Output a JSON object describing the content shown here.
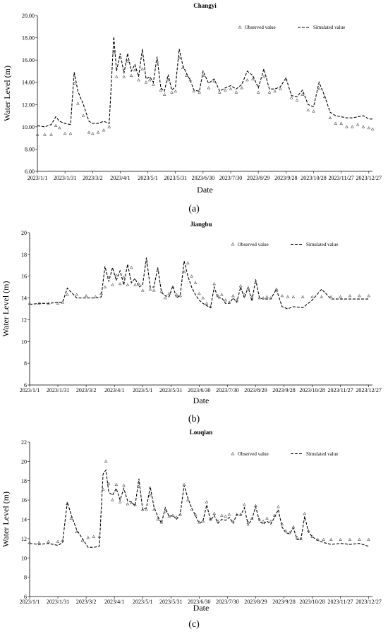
{
  "chart_data": [
    {
      "type": "line",
      "title": "Changyi",
      "xlabel": "Date",
      "ylabel": "Water Level (m)",
      "panel_label": "(a)",
      "ylim": [
        6,
        20
      ],
      "yticks": [
        "6.00",
        "8.00",
        "10.00",
        "12.00",
        "14.00",
        "16.00",
        "18.00",
        "20.00"
      ],
      "xticks": [
        "2023/1/1",
        "2023/1/31",
        "2023/3/2",
        "2023/4/1",
        "2023/5/1",
        "2023/5/31",
        "2023/6/30",
        "2023/7/30",
        "2023/8/29",
        "2023/9/28",
        "2023/10/28",
        "2023/11/27",
        "2023/12/27"
      ],
      "grid": false,
      "legend_position": "top-right",
      "series": [
        {
          "name": "Observed value",
          "marker": "triangle",
          "x": [
            0,
            8,
            15,
            20,
            24,
            30,
            36,
            40,
            44,
            50,
            56,
            60,
            66,
            72,
            78,
            83,
            86,
            90,
            94,
            98,
            102,
            106,
            110,
            114,
            118,
            122,
            126,
            130,
            134,
            138,
            142,
            146,
            150,
            154,
            158,
            162,
            166,
            170,
            176,
            180,
            186,
            192,
            198,
            204,
            210,
            216,
            222,
            228,
            234,
            240,
            246,
            252,
            258,
            264,
            270,
            276,
            282,
            288,
            294,
            300,
            306,
            312,
            318,
            324,
            330,
            336,
            342,
            348,
            354,
            360,
            364
          ],
          "y": [
            9.3,
            9.3,
            9.3,
            10.1,
            9.9,
            9.4,
            9.4,
            13.9,
            12.1,
            11.0,
            9.5,
            9.4,
            9.5,
            9.7,
            10.0,
            16.7,
            14.5,
            16.2,
            14.5,
            15.9,
            14.6,
            15.1,
            14.2,
            15.2,
            14.0,
            14.2,
            13.8,
            15.9,
            13.3,
            12.9,
            14.2,
            13.1,
            13.2,
            16.2,
            15.3,
            14.6,
            14.2,
            13.2,
            13.1,
            14.6,
            13.5,
            14.1,
            13.1,
            13.3,
            13.4,
            13.1,
            13.5,
            14.2,
            14.3,
            13.1,
            14.5,
            13.1,
            13.2,
            13.4,
            14.3,
            12.6,
            12.4,
            12.9,
            11.5,
            11.4,
            13.4,
            12.7,
            10.8,
            10.3,
            10.3,
            10.0,
            10.0,
            10.2,
            10.0,
            9.9,
            9.8
          ]
        },
        {
          "name": "Simulated value",
          "line": "dashed",
          "x": [
            0,
            8,
            15,
            20,
            24,
            30,
            36,
            40,
            44,
            50,
            56,
            60,
            66,
            72,
            78,
            83,
            86,
            90,
            94,
            98,
            102,
            106,
            110,
            114,
            118,
            122,
            126,
            130,
            134,
            138,
            142,
            146,
            150,
            154,
            158,
            162,
            166,
            170,
            176,
            180,
            186,
            192,
            198,
            204,
            210,
            216,
            222,
            228,
            234,
            240,
            246,
            252,
            258,
            264,
            270,
            276,
            282,
            288,
            294,
            300,
            306,
            312,
            318,
            324,
            330,
            336,
            342,
            348,
            354,
            360,
            364
          ],
          "y": [
            10.1,
            10.0,
            10.2,
            10.9,
            10.5,
            10.3,
            10.2,
            14.9,
            13.2,
            12.0,
            10.5,
            10.3,
            10.3,
            10.5,
            10.3,
            18.1,
            15.0,
            16.6,
            14.8,
            16.6,
            15.0,
            15.6,
            14.5,
            17.0,
            14.3,
            14.5,
            14.0,
            16.3,
            13.5,
            13.2,
            14.7,
            13.3,
            13.6,
            17.0,
            15.5,
            14.8,
            14.2,
            13.3,
            13.2,
            15.0,
            13.9,
            14.3,
            13.2,
            13.5,
            13.7,
            13.4,
            13.8,
            15.0,
            14.6,
            13.5,
            15.2,
            13.4,
            13.4,
            13.6,
            14.4,
            12.8,
            12.7,
            13.3,
            12.0,
            11.8,
            14.0,
            12.8,
            11.3,
            11.0,
            10.9,
            10.8,
            10.8,
            10.9,
            11.0,
            10.7,
            10.7
          ]
        }
      ]
    },
    {
      "type": "line",
      "title": "Jiangbu",
      "xlabel": "Date",
      "ylabel": "Water Level (m)",
      "panel_label": "(b)",
      "ylim": [
        6,
        20
      ],
      "yticks": [
        "6",
        "8",
        "10",
        "12",
        "14",
        "16",
        "18",
        "20"
      ],
      "xticks": [
        "2023/1/1",
        "2023/1/31",
        "2023/3/2",
        "2023/4/1",
        "2023/5/1",
        "2023/5/31",
        "2023/6/30",
        "2023/7/30",
        "2023/8/29",
        "2023/9/28",
        "2023/10/28",
        "2023/11/27",
        "2023/12/27"
      ],
      "grid": false,
      "legend_position": "top-right",
      "series": [
        {
          "name": "Observed value",
          "marker": "triangle",
          "x": [
            0,
            10,
            20,
            30,
            35,
            40,
            50,
            60,
            70,
            76,
            80,
            84,
            88,
            92,
            96,
            100,
            104,
            108,
            112,
            116,
            120,
            124,
            128,
            132,
            136,
            140,
            144,
            148,
            152,
            156,
            160,
            164,
            168,
            172,
            176,
            180,
            184,
            188,
            192,
            196,
            200,
            204,
            208,
            212,
            216,
            220,
            224,
            228,
            232,
            236,
            240,
            244,
            248,
            252,
            256,
            262,
            268,
            274,
            280,
            290,
            300,
            310,
            320,
            330,
            340,
            350,
            360
          ],
          "y": [
            13.5,
            13.5,
            13.5,
            13.5,
            13.6,
            14.3,
            14.3,
            14.2,
            14.1,
            14.4,
            15.0,
            15.9,
            15.2,
            16.1,
            15.3,
            15.9,
            15.2,
            16.8,
            15.2,
            15.3,
            14.7,
            17.2,
            14.8,
            14.7,
            16.5,
            14.6,
            14.0,
            14.4,
            15.0,
            14.3,
            14.2,
            16.4,
            17.2,
            16.0,
            15.4,
            14.4,
            14.0,
            13.5,
            13.2,
            15.3,
            14.2,
            14.3,
            13.8,
            13.6,
            14.2,
            13.8,
            15.1,
            14.3,
            14.9,
            14.1,
            15.4,
            14.0,
            14.0,
            14.1,
            14.0,
            14.8,
            14.2,
            14.1,
            14.1,
            14.1,
            14.1,
            14.1,
            14.1,
            14.1,
            14.2,
            14.2,
            14.2
          ]
        },
        {
          "name": "Simulated value",
          "line": "dashed",
          "x": [
            0,
            10,
            20,
            30,
            35,
            40,
            50,
            60,
            70,
            76,
            80,
            84,
            88,
            92,
            96,
            100,
            104,
            108,
            112,
            116,
            120,
            124,
            128,
            132,
            136,
            140,
            144,
            148,
            152,
            156,
            160,
            164,
            168,
            172,
            176,
            180,
            184,
            188,
            192,
            196,
            200,
            204,
            208,
            212,
            216,
            220,
            224,
            228,
            232,
            236,
            240,
            244,
            248,
            252,
            256,
            262,
            268,
            274,
            280,
            290,
            300,
            310,
            320,
            330,
            340,
            350,
            360
          ],
          "y": [
            13.4,
            13.5,
            13.5,
            13.6,
            13.6,
            14.9,
            14.0,
            14.0,
            14.0,
            14.1,
            16.9,
            15.5,
            16.8,
            15.6,
            16.5,
            15.2,
            17.1,
            15.4,
            15.8,
            15.0,
            15.2,
            17.7,
            15.0,
            15.0,
            16.8,
            14.5,
            14.2,
            14.1,
            15.1,
            14.0,
            14.3,
            17.4,
            16.0,
            15.0,
            14.3,
            13.8,
            13.5,
            13.3,
            13.1,
            15.0,
            14.0,
            14.0,
            13.5,
            13.5,
            14.0,
            13.6,
            15.0,
            14.0,
            15.0,
            13.7,
            15.7,
            14.0,
            13.9,
            13.9,
            13.9,
            14.8,
            13.2,
            13.0,
            13.2,
            13.1,
            13.8,
            14.8,
            13.9,
            13.9,
            13.9,
            13.9,
            13.9
          ]
        }
      ]
    },
    {
      "type": "line",
      "title": "Louqian",
      "xlabel": "Date",
      "ylabel": "Water Level (m)",
      "panel_label": "(c)",
      "ylim": [
        6,
        22
      ],
      "yticks": [
        "6",
        "8",
        "10",
        "12",
        "14",
        "16",
        "18",
        "20",
        "22"
      ],
      "xticks": [
        "2023/1/1",
        "2023/1/31",
        "2023/3/2",
        "2023/4/1",
        "2023/5/1",
        "2023/5/31",
        "2023/6/30",
        "2023/7/30",
        "2023/8/29",
        "2023/9/28",
        "2023/10/28",
        "2023/11/27",
        "2023/12/27"
      ],
      "grid": false,
      "legend_position": "top-right",
      "series": [
        {
          "name": "Observed value",
          "marker": "triangle",
          "x": [
            0,
            10,
            20,
            30,
            35,
            40,
            44,
            50,
            56,
            62,
            68,
            74,
            78,
            81,
            84,
            88,
            92,
            96,
            100,
            104,
            108,
            112,
            116,
            120,
            124,
            128,
            132,
            136,
            140,
            144,
            148,
            152,
            156,
            160,
            164,
            168,
            172,
            176,
            180,
            184,
            188,
            192,
            196,
            200,
            204,
            208,
            212,
            216,
            220,
            224,
            228,
            232,
            236,
            240,
            244,
            248,
            252,
            256,
            260,
            264,
            268,
            272,
            276,
            280,
            284,
            288,
            292,
            296,
            300,
            306,
            312,
            320,
            330,
            340,
            350,
            360
          ],
          "y": [
            11.6,
            11.6,
            11.7,
            11.7,
            11.8,
            15.6,
            14.1,
            12.7,
            11.8,
            12.1,
            12.2,
            12.2,
            17.1,
            20.0,
            17.7,
            16.0,
            17.6,
            15.8,
            17.5,
            15.6,
            15.7,
            15.5,
            17.4,
            15.0,
            15.0,
            16.5,
            15.0,
            14.0,
            13.7,
            14.8,
            14.3,
            14.4,
            14.2,
            14.5,
            17.6,
            16.0,
            15.0,
            14.5,
            13.7,
            13.8,
            15.8,
            14.0,
            14.6,
            13.8,
            14.4,
            14.3,
            14.5,
            13.8,
            14.5,
            14.5,
            15.5,
            13.7,
            14.1,
            15.4,
            14.0,
            13.8,
            14.1,
            13.8,
            14.4,
            15.3,
            13.5,
            12.8,
            12.6,
            13.2,
            12.1,
            12.0,
            14.6,
            12.8,
            12.2,
            11.9,
            11.9,
            11.9,
            11.9,
            11.9,
            11.9,
            11.9
          ]
        },
        {
          "name": "Simulated value",
          "line": "dashed",
          "x": [
            0,
            10,
            20,
            30,
            35,
            40,
            44,
            50,
            56,
            62,
            68,
            74,
            78,
            81,
            84,
            88,
            92,
            96,
            100,
            104,
            108,
            112,
            116,
            120,
            124,
            128,
            132,
            136,
            140,
            144,
            148,
            152,
            156,
            160,
            164,
            168,
            172,
            176,
            180,
            184,
            188,
            192,
            196,
            200,
            204,
            208,
            212,
            216,
            220,
            224,
            228,
            232,
            236,
            240,
            244,
            248,
            252,
            256,
            260,
            264,
            268,
            272,
            276,
            280,
            284,
            288,
            292,
            296,
            300,
            306,
            312,
            320,
            330,
            340,
            350,
            360
          ],
          "y": [
            11.5,
            11.4,
            11.5,
            11.3,
            11.6,
            15.8,
            14.5,
            12.9,
            12.0,
            11.1,
            11.1,
            11.2,
            18.7,
            19.1,
            16.8,
            16.5,
            17.2,
            16.0,
            17.2,
            15.9,
            15.8,
            15.4,
            18.2,
            15.0,
            15.2,
            17.4,
            15.3,
            14.3,
            13.6,
            15.2,
            14.3,
            14.4,
            14.0,
            14.6,
            17.5,
            16.2,
            15.2,
            14.4,
            13.6,
            13.8,
            15.5,
            13.9,
            14.4,
            13.6,
            14.0,
            13.9,
            14.2,
            13.6,
            14.5,
            14.4,
            15.2,
            13.4,
            14.0,
            15.3,
            13.8,
            13.5,
            13.8,
            13.5,
            14.2,
            15.0,
            13.2,
            12.6,
            12.5,
            13.1,
            11.9,
            11.9,
            14.3,
            12.7,
            12.2,
            11.8,
            11.6,
            11.4,
            11.5,
            11.4,
            11.5,
            11.2
          ]
        }
      ]
    }
  ]
}
